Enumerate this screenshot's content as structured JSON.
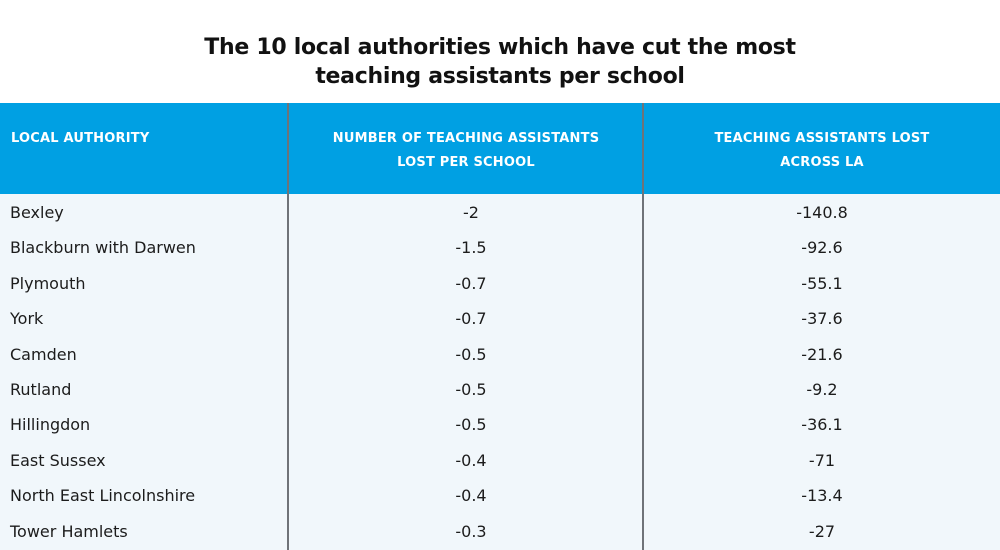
{
  "title": {
    "line1": "The 10 local authorities which have cut the most",
    "line2": "teaching assistants per school"
  },
  "colors": {
    "header_bg": "#00a0e3",
    "header_text": "#ffffff",
    "body_bg": "#f1f7fb",
    "divider": "#6f7378",
    "text": "#1c1c1c"
  },
  "table": {
    "headers": [
      {
        "line1": "LOCAL AUTHORITY",
        "line2": ""
      },
      {
        "line1": "NUMBER OF TEACHING ASSISTANTS",
        "line2": "LOST PER SCHOOL"
      },
      {
        "line1": "TEACHING ASSISTANTS LOST",
        "line2": "ACROSS LA"
      }
    ],
    "rows": [
      {
        "authority": "Bexley",
        "per_school": "-2",
        "across_la": "-140.8"
      },
      {
        "authority": "Blackburn with Darwen",
        "per_school": "-1.5",
        "across_la": "-92.6"
      },
      {
        "authority": "Plymouth",
        "per_school": "-0.7",
        "across_la": "-55.1"
      },
      {
        "authority": "York",
        "per_school": "-0.7",
        "across_la": "-37.6"
      },
      {
        "authority": "Camden",
        "per_school": "-0.5",
        "across_la": "-21.6"
      },
      {
        "authority": "Rutland",
        "per_school": "-0.5",
        "across_la": "-9.2"
      },
      {
        "authority": "Hillingdon",
        "per_school": "-0.5",
        "across_la": "-36.1"
      },
      {
        "authority": "East Sussex",
        "per_school": "-0.4",
        "across_la": "-71"
      },
      {
        "authority": "North East Lincolnshire",
        "per_school": "-0.4",
        "across_la": "-13.4"
      },
      {
        "authority": "Tower Hamlets",
        "per_school": "-0.3",
        "across_la": "-27"
      }
    ]
  }
}
